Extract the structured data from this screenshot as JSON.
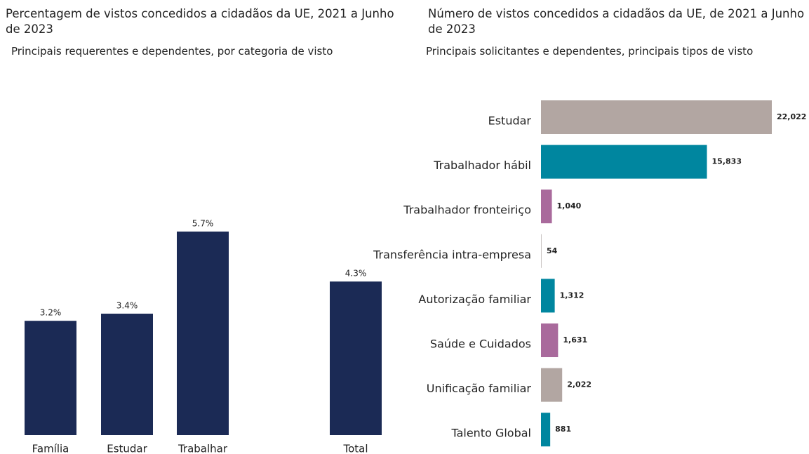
{
  "chart_data": [
    {
      "type": "bar",
      "title": "Percentagem de vistos concedidos a cidadãos da UE, 2021 a Junho de 2023",
      "subtitle": "Principais requerentes e dependentes, por categoria de visto",
      "categories": [
        "Família",
        "Estudar",
        "Trabalhar",
        "Total"
      ],
      "values": [
        3.2,
        3.4,
        5.7,
        4.3
      ],
      "value_labels": [
        "3.2%",
        "3.4%",
        "5.7%",
        "4.3%"
      ],
      "color": "#1b2a55"
    },
    {
      "type": "bar",
      "orientation": "horizontal",
      "title": "Número de vistos concedidos a cidadãos da UE, de 2021 a Junho de 2023",
      "subtitle": "Principais solicitantes e dependentes, principais tipos de visto",
      "categories": [
        "Estudar",
        "Trabalhador hábil",
        "Trabalhador fronteiriço",
        "Transferência intra-empresa",
        "Autorização familiar",
        "Saúde e Cuidados",
        "Unificação familiar",
        "Talento Global"
      ],
      "values": [
        22022,
        15833,
        1040,
        54,
        1312,
        1631,
        2022,
        881
      ],
      "value_labels": [
        "22,022",
        "15,833",
        "1,040",
        "54",
        "1,312",
        "1,631",
        "2,022",
        "881"
      ],
      "colors": [
        "#b2a6a2",
        "#00869f",
        "#a96a9c",
        "#c9c4c2",
        "#00869f",
        "#a96a9c",
        "#b2a6a2",
        "#00869f"
      ]
    }
  ]
}
